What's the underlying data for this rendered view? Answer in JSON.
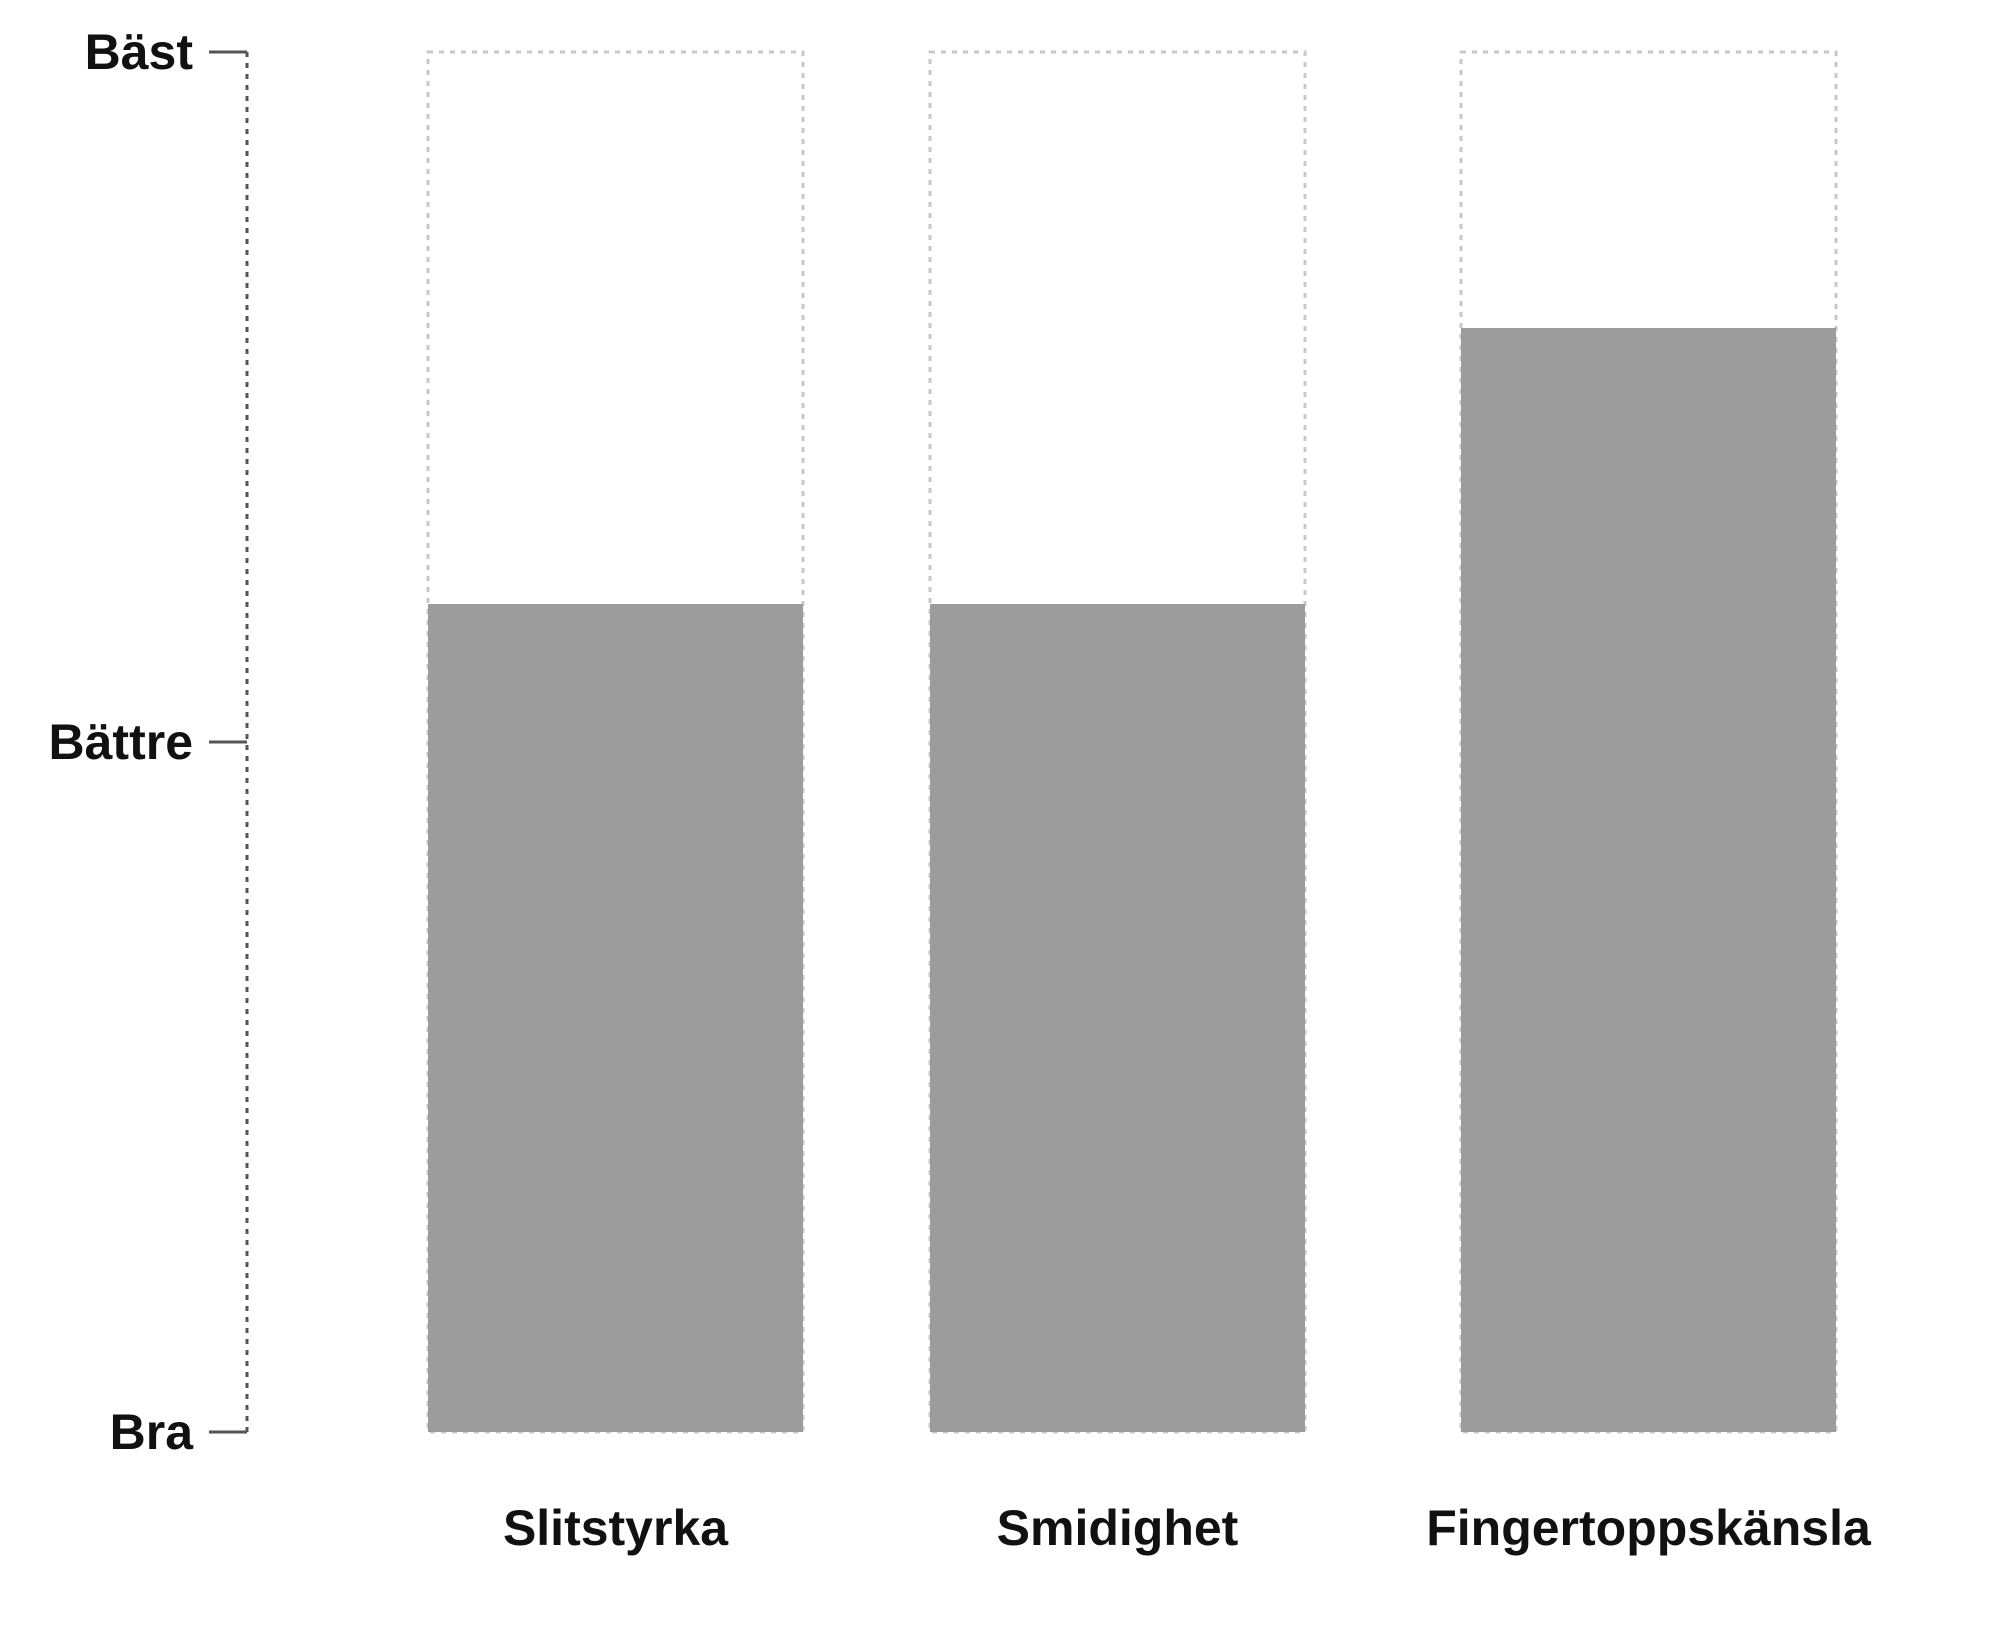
{
  "chart_data": {
    "type": "bar",
    "categories": [
      "Slitstyrka",
      "Smidighet",
      "Fingertoppskänsla"
    ],
    "values": [
      1.2,
      1.2,
      1.6
    ],
    "ylim": [
      0,
      2
    ],
    "y_ticks": [
      {
        "value": 0,
        "label": "Bra"
      },
      {
        "value": 1,
        "label": "Bättre"
      },
      {
        "value": 2,
        "label": "Bäst"
      }
    ],
    "grid": false,
    "bar_color": "#9c9c9c",
    "outline_style": "dotted",
    "outline_color": "#c8c8c8",
    "axis_color": "#555555"
  }
}
